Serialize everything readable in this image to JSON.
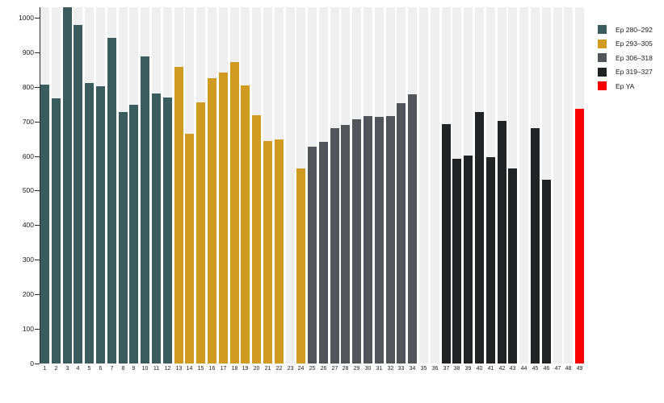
{
  "chart_data": {
    "type": "bar",
    "title": "",
    "xlabel": "",
    "ylabel": "",
    "x_labels": [
      "1",
      "2",
      "3",
      "4",
      "5",
      "6",
      "7",
      "8",
      "9",
      "10",
      "11",
      "12",
      "13",
      "14",
      "15",
      "16",
      "17",
      "18",
      "19",
      "20",
      "21",
      "22",
      "23",
      "24",
      "25",
      "26",
      "27",
      "28",
      "29",
      "30",
      "31",
      "32",
      "33",
      "34",
      "35",
      "36",
      "37",
      "38",
      "39",
      "40",
      "41",
      "42",
      "43",
      "44",
      "45",
      "46",
      "47",
      "48",
      "49"
    ],
    "values": [
      807,
      766,
      1030,
      978,
      810,
      801,
      942,
      727,
      748,
      887,
      780,
      770,
      858,
      664,
      755,
      826,
      841,
      872,
      805,
      719,
      643,
      649,
      null,
      563,
      626,
      641,
      681,
      689,
      707,
      716,
      714,
      715,
      753,
      778,
      null,
      null,
      693,
      591,
      601,
      727,
      596,
      702,
      565,
      null,
      680,
      531,
      null,
      null,
      737
    ],
    "groups": [
      {
        "label": "Ep 280–292",
        "color": "#3a5c5e",
        "from": 1,
        "to": 12
      },
      {
        "label": "Ep 293–305",
        "color": "#d09b20",
        "from": 13,
        "to": 24
      },
      {
        "label": "Ep 306–318",
        "color": "#52565a",
        "from": 25,
        "to": 36
      },
      {
        "label": "Ep 319–327",
        "color": "#212325",
        "from": 37,
        "to": 48
      },
      {
        "label": "Ep YA",
        "color": "#fb0000",
        "from": 49,
        "to": 49
      }
    ],
    "y_ticks": [
      0,
      100,
      200,
      300,
      400,
      500,
      600,
      700,
      800,
      900,
      1000
    ],
    "ylim": [
      0,
      1030
    ],
    "grid": false,
    "legend_position": "right",
    "background_stripe_color": "#efefef"
  }
}
